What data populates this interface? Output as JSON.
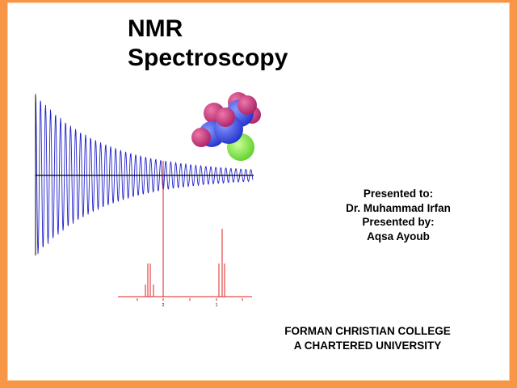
{
  "slide": {
    "title_line1": "NMR",
    "title_line2": "Spectroscopy",
    "presented_to_label": "Presented to:",
    "presented_to_name": "Dr. Muhammad Irfan",
    "presented_by_label": "Presented by:",
    "presented_by_name": "Aqsa Ayoub",
    "institution_line1": "FORMAN CHRISTIAN COLLEGE",
    "institution_line2": "A CHARTERED UNIVERSITY"
  },
  "figure": {
    "spectrum_tick_labels": [
      "2",
      "1"
    ],
    "colors": {
      "border": "#F79646",
      "fid": "#2222cc",
      "spectrum": "#dd2222",
      "atom_blue": "#3344ee",
      "atom_pink": "#cc3377",
      "atom_green": "#66dd33"
    }
  }
}
